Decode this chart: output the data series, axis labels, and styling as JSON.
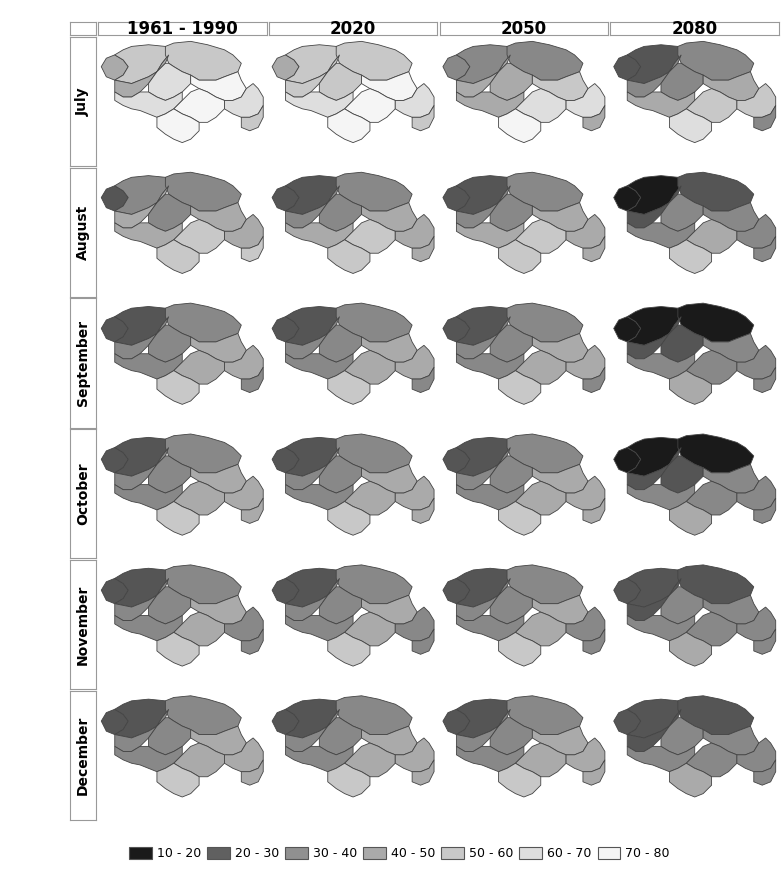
{
  "col_labels": [
    "1961 - 1990",
    "2020",
    "2050",
    "2080"
  ],
  "row_labels": [
    "July",
    "August",
    "September",
    "October",
    "November",
    "December"
  ],
  "legend_labels": [
    "10 - 20",
    "20 - 30",
    "30 - 40",
    "40 - 50",
    "50 - 60",
    "60 - 70",
    "70 - 80"
  ],
  "legend_colors": [
    "#1a1a1a",
    "#606060",
    "#909090",
    "#aaaaaa",
    "#c8c8c8",
    "#dedede",
    "#f5f5f5"
  ],
  "fig_width": 7.83,
  "fig_height": 8.82,
  "background_color": "#ffffff",
  "label_fontsize": 10,
  "col_label_fontsize": 12,
  "month_col_data": {
    "July": {
      "0": [
        "#aaaaaa",
        "#c8c8c8",
        "#c8c8c8",
        "#aaaaaa",
        "#dedede",
        "#f5f5f5",
        "#dedede",
        "#f5f5f5",
        "#f5f5f5",
        "#dedede",
        "#c8c8c8"
      ],
      "1": [
        "#aaaaaa",
        "#c8c8c8",
        "#c8c8c8",
        "#c8c8c8",
        "#c8c8c8",
        "#f5f5f5",
        "#dedede",
        "#f5f5f5",
        "#f5f5f5",
        "#dedede",
        "#c8c8c8"
      ],
      "2": [
        "#888888",
        "#888888",
        "#888888",
        "#aaaaaa",
        "#aaaaaa",
        "#c8c8c8",
        "#aaaaaa",
        "#dedede",
        "#f5f5f5",
        "#dedede",
        "#aaaaaa"
      ],
      "3": [
        "#555555",
        "#555555",
        "#888888",
        "#888888",
        "#888888",
        "#aaaaaa",
        "#aaaaaa",
        "#c8c8c8",
        "#dedede",
        "#c8c8c8",
        "#888888"
      ]
    },
    "August": {
      "0": [
        "#555555",
        "#888888",
        "#888888",
        "#aaaaaa",
        "#888888",
        "#aaaaaa",
        "#aaaaaa",
        "#c8c8c8",
        "#c8c8c8",
        "#aaaaaa",
        "#c8c8c8"
      ],
      "1": [
        "#555555",
        "#555555",
        "#888888",
        "#888888",
        "#888888",
        "#aaaaaa",
        "#aaaaaa",
        "#c8c8c8",
        "#c8c8c8",
        "#aaaaaa",
        "#aaaaaa"
      ],
      "2": [
        "#555555",
        "#555555",
        "#888888",
        "#888888",
        "#888888",
        "#aaaaaa",
        "#aaaaaa",
        "#c8c8c8",
        "#c8c8c8",
        "#aaaaaa",
        "#aaaaaa"
      ],
      "3": [
        "#1a1a1a",
        "#1a1a1a",
        "#555555",
        "#555555",
        "#888888",
        "#888888",
        "#888888",
        "#aaaaaa",
        "#c8c8c8",
        "#888888",
        "#888888"
      ]
    },
    "September": {
      "0": [
        "#555555",
        "#555555",
        "#888888",
        "#888888",
        "#888888",
        "#aaaaaa",
        "#888888",
        "#aaaaaa",
        "#c8c8c8",
        "#aaaaaa",
        "#888888"
      ],
      "1": [
        "#555555",
        "#555555",
        "#888888",
        "#888888",
        "#888888",
        "#aaaaaa",
        "#888888",
        "#aaaaaa",
        "#c8c8c8",
        "#aaaaaa",
        "#888888"
      ],
      "2": [
        "#555555",
        "#555555",
        "#888888",
        "#888888",
        "#888888",
        "#aaaaaa",
        "#888888",
        "#aaaaaa",
        "#c8c8c8",
        "#aaaaaa",
        "#888888"
      ],
      "3": [
        "#1a1a1a",
        "#1a1a1a",
        "#1a1a1a",
        "#555555",
        "#555555",
        "#888888",
        "#888888",
        "#888888",
        "#aaaaaa",
        "#888888",
        "#888888"
      ]
    },
    "October": {
      "0": [
        "#555555",
        "#555555",
        "#888888",
        "#888888",
        "#888888",
        "#aaaaaa",
        "#888888",
        "#aaaaaa",
        "#c8c8c8",
        "#aaaaaa",
        "#aaaaaa"
      ],
      "1": [
        "#555555",
        "#555555",
        "#888888",
        "#888888",
        "#888888",
        "#aaaaaa",
        "#888888",
        "#aaaaaa",
        "#c8c8c8",
        "#aaaaaa",
        "#aaaaaa"
      ],
      "2": [
        "#555555",
        "#555555",
        "#888888",
        "#888888",
        "#888888",
        "#aaaaaa",
        "#888888",
        "#aaaaaa",
        "#c8c8c8",
        "#aaaaaa",
        "#aaaaaa"
      ],
      "3": [
        "#1a1a1a",
        "#1a1a1a",
        "#1a1a1a",
        "#555555",
        "#555555",
        "#888888",
        "#888888",
        "#888888",
        "#aaaaaa",
        "#888888",
        "#888888"
      ]
    },
    "November": {
      "0": [
        "#555555",
        "#555555",
        "#888888",
        "#888888",
        "#888888",
        "#aaaaaa",
        "#888888",
        "#aaaaaa",
        "#c8c8c8",
        "#888888",
        "#888888"
      ],
      "1": [
        "#555555",
        "#555555",
        "#888888",
        "#888888",
        "#888888",
        "#aaaaaa",
        "#888888",
        "#aaaaaa",
        "#c8c8c8",
        "#888888",
        "#888888"
      ],
      "2": [
        "#555555",
        "#555555",
        "#888888",
        "#888888",
        "#888888",
        "#aaaaaa",
        "#888888",
        "#aaaaaa",
        "#c8c8c8",
        "#888888",
        "#888888"
      ],
      "3": [
        "#555555",
        "#555555",
        "#555555",
        "#555555",
        "#888888",
        "#888888",
        "#888888",
        "#888888",
        "#aaaaaa",
        "#888888",
        "#888888"
      ]
    },
    "December": {
      "0": [
        "#555555",
        "#555555",
        "#888888",
        "#888888",
        "#888888",
        "#aaaaaa",
        "#888888",
        "#aaaaaa",
        "#c8c8c8",
        "#aaaaaa",
        "#aaaaaa"
      ],
      "1": [
        "#555555",
        "#555555",
        "#888888",
        "#888888",
        "#888888",
        "#aaaaaa",
        "#888888",
        "#aaaaaa",
        "#c8c8c8",
        "#aaaaaa",
        "#aaaaaa"
      ],
      "2": [
        "#555555",
        "#555555",
        "#888888",
        "#888888",
        "#888888",
        "#aaaaaa",
        "#888888",
        "#aaaaaa",
        "#c8c8c8",
        "#aaaaaa",
        "#aaaaaa"
      ],
      "3": [
        "#555555",
        "#555555",
        "#555555",
        "#555555",
        "#888888",
        "#888888",
        "#888888",
        "#888888",
        "#aaaaaa",
        "#888888",
        "#888888"
      ]
    }
  }
}
